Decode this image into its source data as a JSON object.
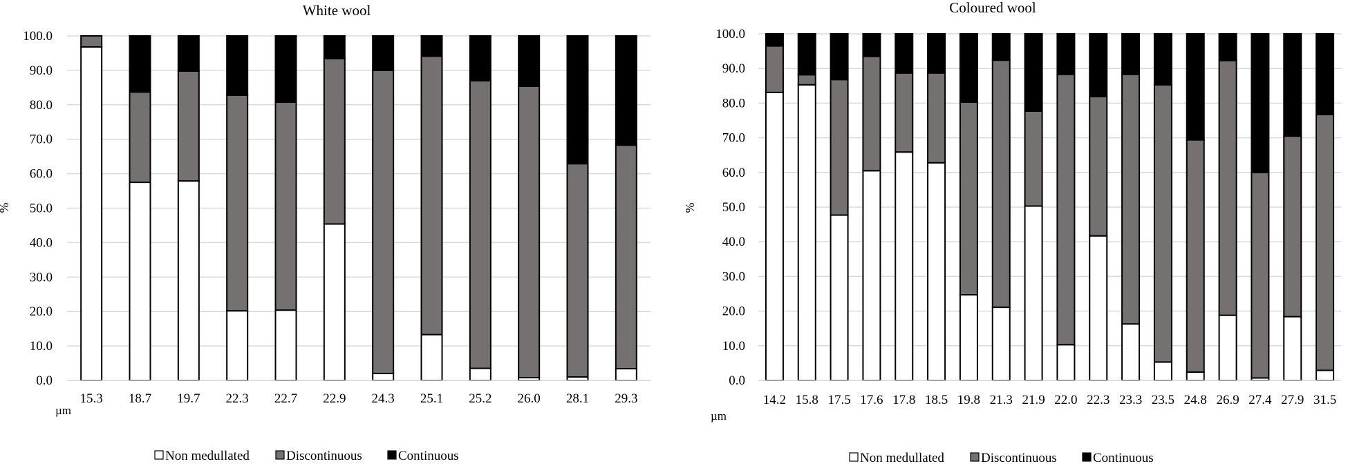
{
  "colors": {
    "non_medullated": "#ffffff",
    "discontinuous": "#767171",
    "continuous": "#000000",
    "grid": "#d9d9d9"
  },
  "chart_data": [
    {
      "type": "bar",
      "stacked": true,
      "title": "White wool",
      "xlabel": "µm",
      "ylabel": "%",
      "ylim": [
        0,
        100
      ],
      "yticks": [
        "0.0",
        "10.0",
        "20.0",
        "30.0",
        "40.0",
        "50.0",
        "60.0",
        "70.0",
        "80.0",
        "90.0",
        "100.0"
      ],
      "grid": true,
      "legend_position": "bottom",
      "categories": [
        "15.3",
        "18.7",
        "19.7",
        "22.3",
        "22.7",
        "22.9",
        "24.3",
        "25.1",
        "25.2",
        "26.0",
        "28.1",
        "29.3"
      ],
      "series": [
        {
          "name": "Non medullated",
          "values": [
            96.8,
            57.5,
            57.9,
            20.2,
            20.4,
            45.4,
            2.0,
            13.3,
            3.5,
            0.8,
            1.0,
            3.4
          ]
        },
        {
          "name": "Discontinuous",
          "values": [
            3.2,
            26.2,
            31.9,
            62.6,
            60.4,
            48.0,
            88.0,
            80.8,
            83.5,
            84.6,
            61.9,
            64.9
          ]
        },
        {
          "name": "Continuous",
          "values": [
            0.0,
            16.3,
            10.2,
            17.2,
            19.2,
            6.6,
            10.0,
            5.9,
            13.0,
            14.6,
            37.1,
            31.7
          ]
        }
      ]
    },
    {
      "type": "bar",
      "stacked": true,
      "title": "Coloured wool",
      "xlabel": "µm",
      "ylabel": "%",
      "ylim": [
        0,
        100
      ],
      "yticks": [
        "0.0",
        "10.0",
        "20.0",
        "30.0",
        "40.0",
        "50.0",
        "60.0",
        "70.0",
        "80.0",
        "90.0",
        "100.0"
      ],
      "grid": true,
      "legend_position": "bottom",
      "categories": [
        "14.2",
        "15.8",
        "17.5",
        "17.6",
        "17.8",
        "18.5",
        "19.8",
        "21.3",
        "21.9",
        "22.0",
        "22.3",
        "23.3",
        "23.5",
        "24.8",
        "26.9",
        "27.4",
        "27.9",
        "31.5"
      ],
      "series": [
        {
          "name": "Non medullated",
          "values": [
            83.1,
            85.3,
            47.7,
            60.5,
            65.9,
            62.8,
            24.7,
            21.1,
            50.3,
            10.3,
            41.7,
            16.3,
            5.3,
            2.4,
            18.8,
            0.7,
            18.4,
            2.9
          ]
        },
        {
          "name": "Discontinuous",
          "values": [
            13.4,
            2.9,
            39.1,
            33.0,
            22.8,
            25.9,
            55.6,
            71.3,
            27.4,
            78.0,
            40.2,
            72.0,
            80.0,
            67.0,
            73.5,
            59.3,
            52.1,
            73.8
          ]
        },
        {
          "name": "Continuous",
          "values": [
            3.5,
            11.8,
            13.2,
            6.5,
            11.3,
            11.3,
            19.7,
            7.6,
            22.3,
            11.7,
            18.1,
            11.7,
            14.7,
            30.6,
            7.7,
            40.0,
            29.5,
            23.3
          ]
        }
      ]
    }
  ]
}
